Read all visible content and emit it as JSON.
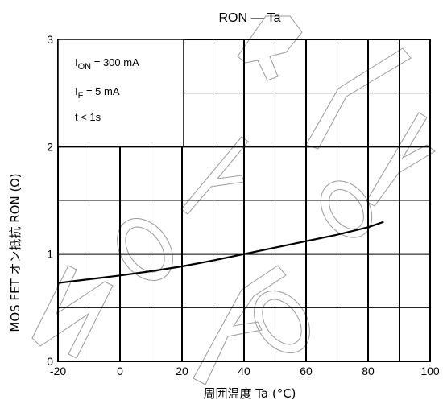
{
  "chart_data": {
    "type": "line",
    "title": "RON — Ta",
    "xlabel": "周囲温度  Ta (°C)",
    "ylabel": "MOS FET オン抵抗  RON (Ω)",
    "xlim": [
      -20,
      100
    ],
    "ylim": [
      0,
      3
    ],
    "x_ticks": [
      "-20",
      "0",
      "20",
      "40",
      "60",
      "80",
      "100"
    ],
    "y_ticks": [
      "0",
      "1",
      "2",
      "3"
    ],
    "grid": true,
    "conditions": [
      {
        "main": "I",
        "sub": "ON",
        "rest": " = 300 mA"
      },
      {
        "main": "I",
        "sub": "F",
        "rest": " = 5 mA"
      },
      {
        "main": "t < 1s",
        "sub": "",
        "rest": ""
      }
    ],
    "series": [
      {
        "x": [
          -20,
          -10,
          0,
          10,
          20,
          30,
          40,
          50,
          60,
          70,
          80,
          85
        ],
        "y": [
          0.73,
          0.765,
          0.8,
          0.84,
          0.885,
          0.94,
          1.0,
          1.06,
          1.12,
          1.18,
          1.25,
          1.3
        ]
      }
    ]
  }
}
